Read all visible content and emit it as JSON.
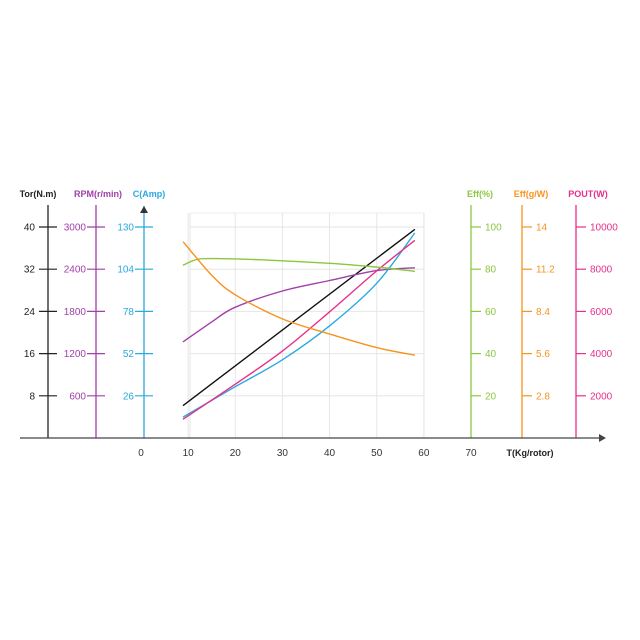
{
  "chart_data": {
    "type": "line",
    "x_axis": {
      "label": "T(Kg/rotor)",
      "ticks": [
        0,
        10,
        20,
        30,
        40,
        50,
        60,
        70
      ],
      "range": [
        0,
        70
      ]
    },
    "grid": true,
    "y_axes": [
      {
        "id": "tor",
        "label": "Tor(N.m)",
        "color": "#222222",
        "side": "left",
        "ticks": [
          8,
          16,
          24,
          32,
          40
        ],
        "tick_labels": [
          "8",
          "16",
          "24",
          "32",
          "40"
        ],
        "max": 40
      },
      {
        "id": "rpm",
        "label": "RPM(r/min)",
        "color": "#a040a8",
        "side": "left",
        "ticks": [
          600,
          1200,
          1800,
          2400,
          3000
        ],
        "tick_labels": [
          "600",
          "1200",
          "1800",
          "2400",
          "3000"
        ],
        "max": 3000
      },
      {
        "id": "amp",
        "label": "C(Amp)",
        "color": "#29a9e0",
        "side": "left",
        "ticks": [
          26,
          52,
          78,
          104,
          130
        ],
        "tick_labels": [
          "26",
          "52",
          "78",
          "104",
          "130"
        ],
        "max": 130
      },
      {
        "id": "effp",
        "label": "Eff(%)",
        "color": "#8cc63f",
        "side": "right",
        "ticks": [
          20,
          40,
          60,
          80,
          100
        ],
        "tick_labels": [
          "20",
          "40",
          "60",
          "80",
          "100"
        ],
        "max": 100
      },
      {
        "id": "effg",
        "label": "Eff(g/W)",
        "color": "#f7931e",
        "side": "right",
        "ticks": [
          2.8,
          5.6,
          8.4,
          11.2,
          14
        ],
        "tick_labels": [
          "2.8",
          "5.6",
          "8.4",
          "11.2",
          "14"
        ],
        "max": 14
      },
      {
        "id": "pout",
        "label": "POUT(W)",
        "color": "#e6308a",
        "side": "right",
        "ticks": [
          2000,
          4000,
          6000,
          8000,
          10000
        ],
        "tick_labels": [
          "2000",
          "4000",
          "6000",
          "8000",
          "10000"
        ],
        "max": 10000
      }
    ],
    "series": [
      {
        "axis": "tor",
        "color": "#111111",
        "x": [
          9,
          20,
          30,
          40,
          50,
          58
        ],
        "y": [
          6.2,
          13.6,
          20.4,
          27.2,
          34.0,
          39.5
        ]
      },
      {
        "axis": "rpm",
        "color": "#a040a8",
        "x": [
          9,
          15,
          20,
          30,
          40,
          50,
          58
        ],
        "y": [
          1370,
          1650,
          1860,
          2090,
          2240,
          2380,
          2420
        ]
      },
      {
        "axis": "amp",
        "color": "#29a9e0",
        "x": [
          9,
          20,
          30,
          40,
          50,
          58
        ],
        "y": [
          13,
          31.6,
          48.2,
          69.1,
          95.3,
          126
        ]
      },
      {
        "axis": "pout",
        "color": "#e6308a",
        "x": [
          9,
          20,
          30,
          40,
          50,
          58
        ],
        "y": [
          900,
          2550,
          4120,
          5980,
          7920,
          9350
        ]
      },
      {
        "axis": "effp",
        "color": "#8cc63f",
        "x": [
          9,
          12,
          16,
          25,
          40,
          50,
          58
        ],
        "y": [
          82,
          84.7,
          85,
          84.5,
          82.8,
          81,
          79
        ]
      },
      {
        "axis": "effg",
        "color": "#f7931e",
        "x": [
          9,
          15,
          20,
          30,
          40,
          50,
          58
        ],
        "y": [
          13.0,
          10.8,
          9.5,
          7.9,
          6.9,
          6.0,
          5.5
        ]
      }
    ]
  }
}
